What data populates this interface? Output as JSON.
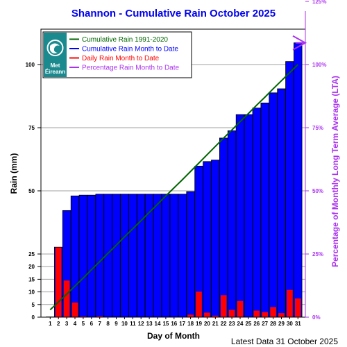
{
  "chart_data": {
    "type": "bar",
    "title": "Shannon - Cumulative Rain October   2025",
    "xlabel": "Day of Month",
    "ylabel": "Rain (mm)",
    "y2label": "Percentage  of Monthly Long Term Average (LTA)",
    "footer": "Latest Data 31 October 2025",
    "logo_text": [
      "Met",
      "Éireann"
    ],
    "ylim": [
      0,
      125
    ],
    "y_ticks": [
      0,
      5,
      10,
      15,
      20,
      25,
      50,
      75,
      100
    ],
    "y2_ticks": [
      "0%",
      "25%",
      "50%",
      "75%",
      "100%",
      "125%"
    ],
    "y2_tick_values": [
      0,
      25,
      50,
      75,
      100,
      125
    ],
    "lta_total_mm": 100,
    "categories": [
      "1",
      "2",
      "3",
      "4",
      "5",
      "6",
      "7",
      "8",
      "9",
      "10",
      "11",
      "12",
      "13",
      "14",
      "15",
      "16",
      "17",
      "18",
      "19",
      "20",
      "21",
      "22",
      "23",
      "24",
      "25",
      "26",
      "27",
      "28",
      "29",
      "30",
      "31"
    ],
    "legend": [
      {
        "label": "Cumulative Rain 1991-2020",
        "color": "#006400"
      },
      {
        "label": "Cumulative Rain Month to Date",
        "color": "#0000ff"
      },
      {
        "label": "Daily Rain Month to Date",
        "color": "#ff0000"
      },
      {
        "label": "Percentage Rain Month to Date",
        "color": "#aa33ee"
      }
    ],
    "series": [
      {
        "name": "Cumulative Rain Month to Date",
        "color": "#0000ff",
        "values": [
          0.1,
          27.7,
          42.2,
          48.0,
          48.3,
          48.3,
          48.7,
          48.7,
          48.7,
          48.7,
          48.7,
          48.7,
          48.7,
          48.7,
          48.7,
          48.7,
          48.7,
          49.7,
          59.8,
          61.6,
          62.2,
          70.9,
          73.8,
          80.2,
          80.2,
          82.8,
          84.8,
          88.8,
          90.4,
          101.2,
          108.6
        ]
      },
      {
        "name": "Daily Rain Month to Date",
        "color": "#ff0000",
        "values": [
          0.1,
          27.6,
          14.5,
          5.8,
          0.3,
          0.0,
          0.4,
          0.0,
          0.0,
          0.0,
          0.0,
          0.0,
          0.0,
          0.0,
          0.0,
          0.0,
          0.0,
          1.0,
          10.1,
          1.8,
          0.6,
          8.7,
          2.9,
          6.4,
          0.0,
          2.6,
          2.0,
          4.0,
          1.6,
          10.8,
          7.4
        ]
      },
      {
        "name": "Cumulative Rain 1991-2020",
        "color": "#006400",
        "values": [
          2.9,
          6.0,
          9.1,
          12.3,
          15.5,
          18.8,
          22.0,
          25.3,
          28.5,
          31.8,
          35.0,
          38.2,
          41.5,
          44.7,
          48.0,
          51.2,
          54.4,
          57.7,
          61.0,
          64.3,
          67.6,
          70.9,
          74.1,
          77.4,
          80.6,
          83.9,
          87.1,
          90.4,
          93.6,
          96.8,
          100.0
        ]
      }
    ],
    "percentage_to_date": 108.6,
    "percentage_marker_color": "#aa33ee",
    "grid": true,
    "legend_position": "top-left"
  }
}
